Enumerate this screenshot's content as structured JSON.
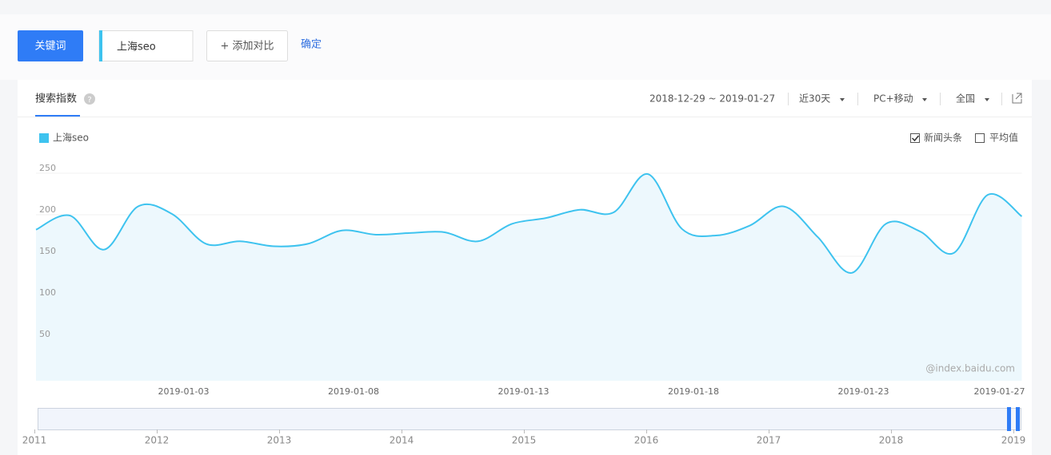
{
  "toolbar": {
    "keyword_button": "关键词",
    "keyword_input": "上海seo",
    "add_compare": "+ 添加对比",
    "confirm": "确定"
  },
  "panel": {
    "tab": "搜索指数",
    "date_range": "2018-12-29 ~ 2019-01-27",
    "period": "近30天",
    "device": "PC+移动",
    "region": "全国",
    "option_news": "新闻头条",
    "option_news_checked": true,
    "option_average": "平均值",
    "option_average_checked": false,
    "source": "@index.baidu.com"
  },
  "chart_data": {
    "type": "line",
    "area": true,
    "smooth": true,
    "categories": [
      null,
      null,
      null,
      null,
      null,
      "2019-01-03",
      null,
      null,
      null,
      null,
      "2019-01-08",
      null,
      null,
      null,
      null,
      "2019-01-13",
      null,
      null,
      null,
      null,
      "2019-01-18",
      null,
      null,
      null,
      null,
      "2019-01-23",
      null,
      null,
      null,
      "2019-01-27"
    ],
    "series": [
      {
        "name": "上海seo",
        "color": "#3ec3ef",
        "values": [
          182,
          199,
          158,
          210,
          201,
          165,
          168,
          162,
          165,
          181,
          176,
          178,
          179,
          168,
          189,
          196,
          206,
          203,
          249,
          183,
          175,
          187,
          210,
          173,
          130,
          189,
          180,
          154,
          224,
          198
        ]
      }
    ],
    "ylim": [
      0,
      250
    ],
    "yticks": [
      50,
      100,
      150,
      200,
      250
    ],
    "grid": true
  },
  "timeline": {
    "years": [
      "2011",
      "2012",
      "2013",
      "2014",
      "2015",
      "2016",
      "2017",
      "2018",
      "2019"
    ]
  }
}
